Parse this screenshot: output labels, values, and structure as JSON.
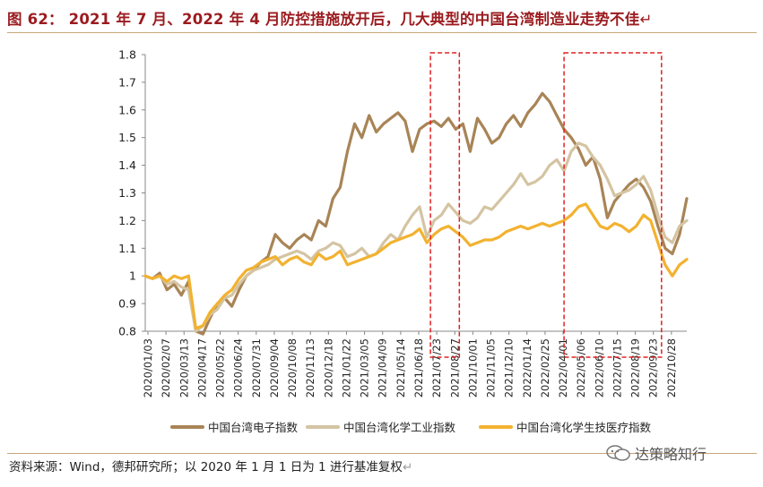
{
  "figure": {
    "title_prefix": "图 62：",
    "title_text": "2021 年 7 月、2022 年 4 月防控措施放开后，几大典型的中国台湾制造业走势不佳",
    "paragraph_mark": "↵"
  },
  "source": {
    "text": "资料来源：Wind，德邦研究所；以 2020 年 1 月 1 日为 1 进行基准复权",
    "paragraph_mark": "↵"
  },
  "watermark": {
    "text": "达策略知行",
    "icon": "wechat-icon"
  },
  "chart_data": {
    "type": "line",
    "title": "",
    "xlabel": "",
    "ylabel": "",
    "ylim": [
      0.8,
      1.8
    ],
    "yticks": [
      0.8,
      0.9,
      1.0,
      1.1,
      1.2,
      1.3,
      1.4,
      1.5,
      1.6,
      1.7,
      1.8
    ],
    "ytick_labels": [
      "0.8",
      "0.9",
      "1",
      "1.1",
      "1.2",
      "1.3",
      "1.4",
      "1.5",
      "1.6",
      "1.7",
      "1.8"
    ],
    "x_tick_labels": [
      "2020/01/03",
      "2020/02/07",
      "2020/03/13",
      "2020/04/17",
      "2020/05/22",
      "2020/06/24",
      "2020/07/31",
      "2020/09/04",
      "2020/10/08",
      "2020/11/13",
      "2020/12/18",
      "2021/01/22",
      "2021/03/05",
      "2021/04/09",
      "2021/05/14",
      "2021/06/18",
      "2021/07/23",
      "2021/08/27",
      "2021/10/01",
      "2021/11/05",
      "2021/12/10",
      "2022/01/14",
      "2022/02/25",
      "2022/04/01",
      "2022/05/06",
      "2022/06/10",
      "2022/07/15",
      "2022/08/19",
      "2022/09/23",
      "2022/10/28"
    ],
    "grid": false,
    "legend_position": "bottom",
    "highlight_boxes": [
      {
        "from": "2021/07/16",
        "to": "2021/09/10",
        "style": "red-dashed"
      },
      {
        "from": "2022/04/08",
        "to": "2022/10/14",
        "style": "red-dashed"
      }
    ],
    "series": [
      {
        "name": "中国台湾电子指数",
        "color": "#a88456",
        "values": [
          [
            0,
            1.0
          ],
          [
            1,
            0.99
          ],
          [
            2,
            1.01
          ],
          [
            3,
            0.95
          ],
          [
            4,
            0.97
          ],
          [
            5,
            0.93
          ],
          [
            6,
            0.98
          ],
          [
            7,
            0.8
          ],
          [
            8,
            0.79
          ],
          [
            9,
            0.85
          ],
          [
            10,
            0.9
          ],
          [
            11,
            0.92
          ],
          [
            12,
            0.89
          ],
          [
            13,
            0.95
          ],
          [
            14,
            1.0
          ],
          [
            15,
            1.02
          ],
          [
            16,
            1.05
          ],
          [
            17,
            1.07
          ],
          [
            18,
            1.15
          ],
          [
            19,
            1.12
          ],
          [
            20,
            1.1
          ],
          [
            21,
            1.13
          ],
          [
            22,
            1.15
          ],
          [
            23,
            1.13
          ],
          [
            24,
            1.2
          ],
          [
            25,
            1.18
          ],
          [
            26,
            1.28
          ],
          [
            27,
            1.32
          ],
          [
            28,
            1.45
          ],
          [
            29,
            1.55
          ],
          [
            30,
            1.5
          ],
          [
            31,
            1.58
          ],
          [
            32,
            1.52
          ],
          [
            33,
            1.55
          ],
          [
            34,
            1.57
          ],
          [
            35,
            1.59
          ],
          [
            36,
            1.56
          ],
          [
            37,
            1.45
          ],
          [
            38,
            1.53
          ],
          [
            39,
            1.55
          ],
          [
            40,
            1.56
          ],
          [
            41,
            1.54
          ],
          [
            42,
            1.57
          ],
          [
            43,
            1.53
          ],
          [
            44,
            1.55
          ],
          [
            45,
            1.45
          ],
          [
            46,
            1.57
          ],
          [
            47,
            1.53
          ],
          [
            48,
            1.48
          ],
          [
            49,
            1.5
          ],
          [
            50,
            1.55
          ],
          [
            51,
            1.58
          ],
          [
            52,
            1.54
          ],
          [
            53,
            1.59
          ],
          [
            54,
            1.62
          ],
          [
            55,
            1.66
          ],
          [
            56,
            1.63
          ],
          [
            57,
            1.58
          ],
          [
            58,
            1.53
          ],
          [
            59,
            1.5
          ],
          [
            60,
            1.46
          ],
          [
            61,
            1.4
          ],
          [
            62,
            1.43
          ],
          [
            63,
            1.35
          ],
          [
            64,
            1.21
          ],
          [
            65,
            1.27
          ],
          [
            66,
            1.3
          ],
          [
            67,
            1.33
          ],
          [
            68,
            1.35
          ],
          [
            69,
            1.32
          ],
          [
            70,
            1.27
          ],
          [
            71,
            1.18
          ],
          [
            72,
            1.1
          ],
          [
            73,
            1.08
          ],
          [
            74,
            1.15
          ],
          [
            75,
            1.28
          ]
        ]
      },
      {
        "name": "中国台湾化学工业指数",
        "color": "#d4c4a2",
        "values": [
          [
            0,
            1.0
          ],
          [
            1,
            0.99
          ],
          [
            2,
            1.0
          ],
          [
            3,
            0.97
          ],
          [
            4,
            0.98
          ],
          [
            5,
            0.96
          ],
          [
            6,
            0.95
          ],
          [
            7,
            0.8
          ],
          [
            8,
            0.82
          ],
          [
            9,
            0.86
          ],
          [
            10,
            0.88
          ],
          [
            11,
            0.92
          ],
          [
            12,
            0.93
          ],
          [
            13,
            0.97
          ],
          [
            14,
            1.0
          ],
          [
            15,
            1.02
          ],
          [
            16,
            1.03
          ],
          [
            17,
            1.04
          ],
          [
            18,
            1.06
          ],
          [
            19,
            1.07
          ],
          [
            20,
            1.08
          ],
          [
            21,
            1.09
          ],
          [
            22,
            1.08
          ],
          [
            23,
            1.06
          ],
          [
            24,
            1.09
          ],
          [
            25,
            1.1
          ],
          [
            26,
            1.12
          ],
          [
            27,
            1.11
          ],
          [
            28,
            1.07
          ],
          [
            29,
            1.08
          ],
          [
            30,
            1.1
          ],
          [
            31,
            1.07
          ],
          [
            32,
            1.08
          ],
          [
            33,
            1.12
          ],
          [
            34,
            1.15
          ],
          [
            35,
            1.13
          ],
          [
            36,
            1.18
          ],
          [
            37,
            1.22
          ],
          [
            38,
            1.25
          ],
          [
            39,
            1.14
          ],
          [
            40,
            1.2
          ],
          [
            41,
            1.22
          ],
          [
            42,
            1.26
          ],
          [
            43,
            1.23
          ],
          [
            44,
            1.2
          ],
          [
            45,
            1.19
          ],
          [
            46,
            1.21
          ],
          [
            47,
            1.25
          ],
          [
            48,
            1.24
          ],
          [
            49,
            1.27
          ],
          [
            50,
            1.3
          ],
          [
            51,
            1.33
          ],
          [
            52,
            1.37
          ],
          [
            53,
            1.33
          ],
          [
            54,
            1.34
          ],
          [
            55,
            1.36
          ],
          [
            56,
            1.4
          ],
          [
            57,
            1.42
          ],
          [
            58,
            1.38
          ],
          [
            59,
            1.45
          ],
          [
            60,
            1.48
          ],
          [
            61,
            1.47
          ],
          [
            62,
            1.43
          ],
          [
            63,
            1.4
          ],
          [
            64,
            1.35
          ],
          [
            65,
            1.29
          ],
          [
            66,
            1.3
          ],
          [
            67,
            1.31
          ],
          [
            68,
            1.33
          ],
          [
            69,
            1.36
          ],
          [
            70,
            1.31
          ],
          [
            71,
            1.22
          ],
          [
            72,
            1.14
          ],
          [
            73,
            1.12
          ],
          [
            74,
            1.18
          ],
          [
            75,
            1.2
          ]
        ]
      },
      {
        "name": "中国台湾化学生技医疗指数",
        "color": "#f2b230",
        "values": [
          [
            0,
            1.0
          ],
          [
            1,
            0.99
          ],
          [
            2,
            1.0
          ],
          [
            3,
            0.98
          ],
          [
            4,
            1.0
          ],
          [
            5,
            0.99
          ],
          [
            6,
            1.0
          ],
          [
            7,
            0.81
          ],
          [
            8,
            0.82
          ],
          [
            9,
            0.87
          ],
          [
            10,
            0.9
          ],
          [
            11,
            0.93
          ],
          [
            12,
            0.95
          ],
          [
            13,
            0.99
          ],
          [
            14,
            1.02
          ],
          [
            15,
            1.03
          ],
          [
            16,
            1.05
          ],
          [
            17,
            1.06
          ],
          [
            18,
            1.07
          ],
          [
            19,
            1.04
          ],
          [
            20,
            1.06
          ],
          [
            21,
            1.07
          ],
          [
            22,
            1.05
          ],
          [
            23,
            1.04
          ],
          [
            24,
            1.08
          ],
          [
            25,
            1.06
          ],
          [
            26,
            1.07
          ],
          [
            27,
            1.09
          ],
          [
            28,
            1.04
          ],
          [
            29,
            1.05
          ],
          [
            30,
            1.06
          ],
          [
            31,
            1.07
          ],
          [
            32,
            1.08
          ],
          [
            33,
            1.1
          ],
          [
            34,
            1.12
          ],
          [
            35,
            1.13
          ],
          [
            36,
            1.14
          ],
          [
            37,
            1.15
          ],
          [
            38,
            1.17
          ],
          [
            39,
            1.12
          ],
          [
            40,
            1.15
          ],
          [
            41,
            1.17
          ],
          [
            42,
            1.18
          ],
          [
            43,
            1.16
          ],
          [
            44,
            1.14
          ],
          [
            45,
            1.11
          ],
          [
            46,
            1.12
          ],
          [
            47,
            1.13
          ],
          [
            48,
            1.13
          ],
          [
            49,
            1.14
          ],
          [
            50,
            1.16
          ],
          [
            51,
            1.17
          ],
          [
            52,
            1.18
          ],
          [
            53,
            1.17
          ],
          [
            54,
            1.18
          ],
          [
            55,
            1.19
          ],
          [
            56,
            1.18
          ],
          [
            57,
            1.19
          ],
          [
            58,
            1.2
          ],
          [
            59,
            1.22
          ],
          [
            60,
            1.25
          ],
          [
            61,
            1.26
          ],
          [
            62,
            1.22
          ],
          [
            63,
            1.18
          ],
          [
            64,
            1.17
          ],
          [
            65,
            1.19
          ],
          [
            66,
            1.18
          ],
          [
            67,
            1.16
          ],
          [
            68,
            1.18
          ],
          [
            69,
            1.22
          ],
          [
            70,
            1.2
          ],
          [
            71,
            1.12
          ],
          [
            72,
            1.04
          ],
          [
            73,
            1.0
          ],
          [
            74,
            1.04
          ],
          [
            75,
            1.06
          ]
        ]
      }
    ]
  }
}
